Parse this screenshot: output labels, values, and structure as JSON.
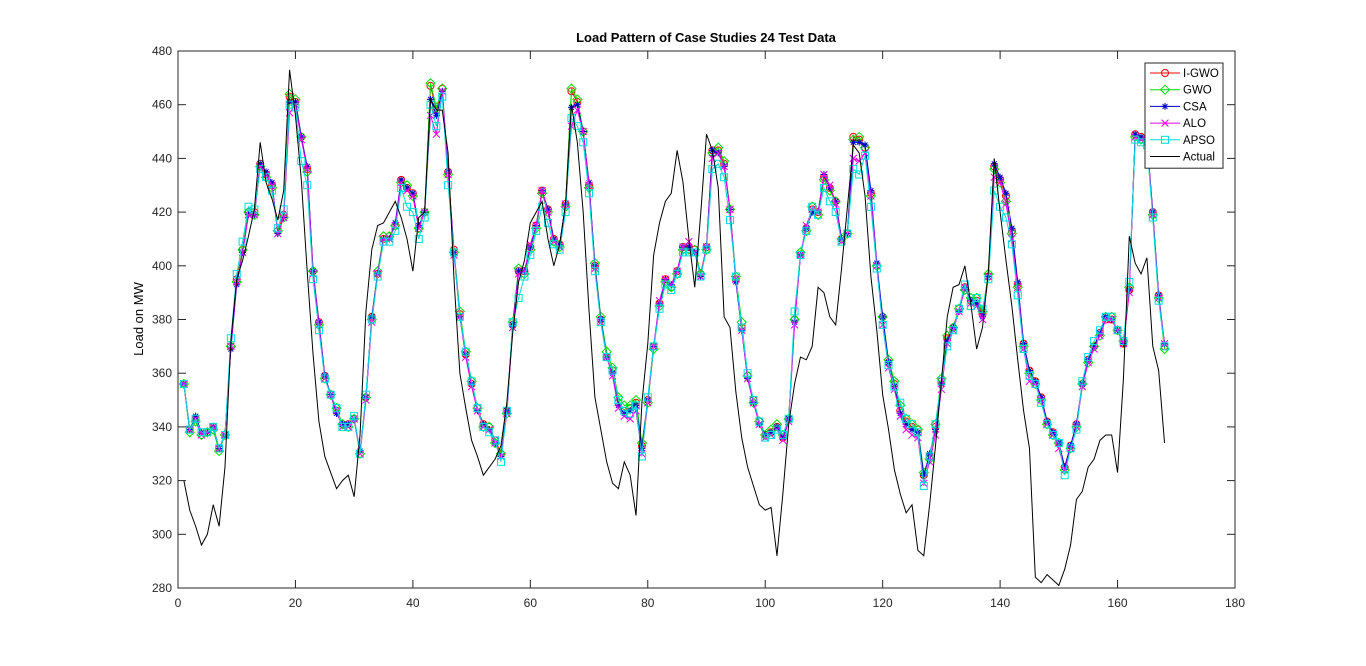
{
  "chart_data": {
    "type": "line",
    "title": "Load Pattern of Case Studies 24 Test Data",
    "xlabel": "",
    "ylabel": "Load on MW",
    "xlim": [
      0,
      180
    ],
    "ylim": [
      280,
      480
    ],
    "xticks": [
      0,
      20,
      40,
      60,
      80,
      100,
      120,
      140,
      160,
      180
    ],
    "yticks": [
      280,
      300,
      320,
      340,
      360,
      380,
      400,
      420,
      440,
      460,
      480
    ],
    "grid": false,
    "legend_position": "top-right",
    "x": [
      1,
      2,
      3,
      4,
      5,
      6,
      7,
      8,
      9,
      10,
      11,
      12,
      13,
      14,
      15,
      16,
      17,
      18,
      19,
      20,
      21,
      22,
      23,
      24,
      25,
      26,
      27,
      28,
      29,
      30,
      31,
      32,
      33,
      34,
      35,
      36,
      37,
      38,
      39,
      40,
      41,
      42,
      43,
      44,
      45,
      46,
      47,
      48,
      49,
      50,
      51,
      52,
      53,
      54,
      55,
      56,
      57,
      58,
      59,
      60,
      61,
      62,
      63,
      64,
      65,
      66,
      67,
      68,
      69,
      70,
      71,
      72,
      73,
      74,
      75,
      76,
      77,
      78,
      79,
      80,
      81,
      82,
      83,
      84,
      85,
      86,
      87,
      88,
      89,
      90,
      91,
      92,
      93,
      94,
      95,
      96,
      97,
      98,
      99,
      100,
      101,
      102,
      103,
      104,
      105,
      106,
      107,
      108,
      109,
      110,
      111,
      112,
      113,
      114,
      115,
      116,
      117,
      118,
      119,
      120,
      121,
      122,
      123,
      124,
      125,
      126,
      127,
      128,
      129,
      130,
      131,
      132,
      133,
      134,
      135,
      136,
      137,
      138,
      139,
      140,
      141,
      142,
      143,
      144,
      145,
      146,
      147,
      148,
      149,
      150,
      151,
      152,
      153,
      154,
      155,
      156,
      157,
      158,
      159,
      160,
      161,
      162,
      163,
      164,
      165,
      166,
      167,
      168
    ],
    "series": [
      {
        "name": "I-GWO",
        "color": "#ff0000",
        "marker": "circle",
        "values": [
          356,
          339,
          343,
          337,
          338,
          340,
          332,
          337,
          370,
          395,
          406,
          420,
          420,
          438,
          434,
          430,
          413,
          419,
          463,
          461,
          448,
          436,
          398,
          379,
          359,
          352,
          346,
          341,
          341,
          343,
          330,
          351,
          381,
          397,
          410,
          411,
          415,
          432,
          429,
          427,
          414,
          420,
          467,
          458,
          466,
          435,
          406,
          382,
          367,
          356,
          347,
          341,
          340,
          335,
          330,
          346,
          378,
          398,
          398,
          407,
          415,
          428,
          421,
          410,
          408,
          423,
          465,
          461,
          450,
          430,
          400,
          380,
          366,
          361,
          349,
          346,
          347,
          349,
          333,
          350,
          370,
          386,
          395,
          392,
          398,
          407,
          407,
          406,
          397,
          407,
          443,
          443,
          438,
          421,
          395,
          377,
          359,
          350,
          342,
          337,
          338,
          340,
          336,
          343,
          380,
          404,
          414,
          421,
          420,
          433,
          429,
          424,
          410,
          412,
          448,
          447,
          444,
          427,
          400,
          381,
          364,
          356,
          346,
          342,
          340,
          339,
          322,
          329,
          340,
          357,
          373,
          377,
          384,
          392,
          387,
          387,
          382,
          396,
          437,
          432,
          426,
          413,
          393,
          371,
          361,
          357,
          351,
          342,
          338,
          334,
          325,
          333,
          341,
          356,
          365,
          370,
          375,
          380,
          380,
          376,
          371,
          391,
          449,
          448,
          447,
          420,
          389,
          370
        ]
      },
      {
        "name": "GWO",
        "color": "#00dd00",
        "marker": "diamond",
        "values": [
          356,
          338,
          342,
          337,
          338,
          339,
          331,
          337,
          370,
          394,
          406,
          420,
          419,
          437,
          433,
          429,
          413,
          418,
          464,
          462,
          448,
          435,
          398,
          378,
          358,
          352,
          347,
          341,
          340,
          343,
          330,
          351,
          380,
          398,
          411,
          411,
          415,
          431,
          430,
          426,
          414,
          420,
          468,
          459,
          466,
          434,
          405,
          383,
          368,
          357,
          347,
          340,
          340,
          334,
          330,
          345,
          379,
          399,
          397,
          406,
          414,
          427,
          420,
          409,
          407,
          422,
          466,
          462,
          450,
          429,
          401,
          381,
          368,
          362,
          351,
          348,
          348,
          350,
          334,
          349,
          369,
          385,
          394,
          392,
          397,
          406,
          406,
          406,
          397,
          406,
          442,
          444,
          439,
          421,
          396,
          379,
          359,
          349,
          342,
          337,
          339,
          341,
          337,
          343,
          380,
          405,
          413,
          422,
          419,
          432,
          428,
          424,
          410,
          412,
          447,
          448,
          444,
          426,
          400,
          381,
          365,
          357,
          348,
          343,
          341,
          339,
          323,
          328,
          341,
          358,
          374,
          377,
          384,
          391,
          388,
          388,
          383,
          397,
          436,
          431,
          424,
          412,
          392,
          370,
          360,
          356,
          350,
          341,
          337,
          334,
          324,
          332,
          340,
          356,
          364,
          370,
          374,
          381,
          381,
          376,
          372,
          392,
          448,
          447,
          446,
          419,
          388,
          369
        ]
      },
      {
        "name": "CSA",
        "color": "#0000cc",
        "marker": "asterisk",
        "values": [
          356,
          339,
          344,
          338,
          338,
          340,
          332,
          337,
          369,
          393,
          405,
          419,
          419,
          438,
          435,
          431,
          412,
          418,
          461,
          461,
          448,
          437,
          398,
          379,
          359,
          352,
          345,
          341,
          341,
          343,
          331,
          351,
          381,
          397,
          410,
          410,
          416,
          432,
          429,
          427,
          415,
          420,
          462,
          456,
          465,
          435,
          405,
          381,
          367,
          356,
          346,
          341,
          339,
          334,
          329,
          346,
          378,
          398,
          398,
          407,
          415,
          428,
          421,
          410,
          408,
          423,
          459,
          460,
          450,
          431,
          400,
          380,
          366,
          360,
          348,
          345,
          346,
          348,
          332,
          350,
          370,
          386,
          395,
          393,
          398,
          407,
          407,
          405,
          396,
          407,
          443,
          442,
          437,
          421,
          394,
          376,
          358,
          349,
          341,
          337,
          338,
          340,
          336,
          343,
          379,
          404,
          414,
          420,
          420,
          434,
          429,
          424,
          410,
          412,
          446,
          446,
          445,
          428,
          401,
          381,
          364,
          355,
          345,
          341,
          339,
          338,
          322,
          330,
          339,
          356,
          372,
          377,
          383,
          392,
          387,
          386,
          381,
          396,
          438,
          433,
          427,
          414,
          394,
          371,
          361,
          357,
          351,
          342,
          338,
          334,
          325,
          333,
          341,
          356,
          365,
          370,
          375,
          381,
          380,
          376,
          371,
          391,
          449,
          448,
          447,
          420,
          389,
          371
        ]
      },
      {
        "name": "ALO",
        "color": "#ee00ee",
        "marker": "x",
        "values": [
          356,
          339,
          343,
          337,
          338,
          340,
          332,
          337,
          370,
          394,
          405,
          419,
          419,
          437,
          434,
          430,
          412,
          418,
          457,
          460,
          447,
          436,
          397,
          378,
          358,
          352,
          346,
          340,
          340,
          343,
          330,
          350,
          379,
          397,
          410,
          410,
          415,
          431,
          428,
          426,
          414,
          420,
          456,
          449,
          465,
          434,
          404,
          381,
          366,
          355,
          346,
          340,
          339,
          334,
          329,
          345,
          377,
          397,
          398,
          408,
          415,
          428,
          420,
          409,
          407,
          423,
          452,
          458,
          450,
          430,
          399,
          379,
          366,
          359,
          347,
          344,
          343,
          346,
          330,
          349,
          370,
          387,
          395,
          393,
          398,
          407,
          409,
          405,
          396,
          407,
          440,
          442,
          437,
          421,
          395,
          376,
          358,
          349,
          341,
          336,
          337,
          339,
          335,
          342,
          378,
          404,
          415,
          421,
          420,
          434,
          430,
          423,
          409,
          412,
          440,
          439,
          442,
          426,
          400,
          378,
          362,
          354,
          344,
          339,
          337,
          336,
          319,
          327,
          337,
          354,
          371,
          376,
          383,
          392,
          386,
          385,
          380,
          396,
          433,
          431,
          423,
          410,
          392,
          369,
          357,
          356,
          350,
          341,
          337,
          332,
          324,
          332,
          340,
          355,
          364,
          369,
          374,
          380,
          380,
          376,
          371,
          390,
          448,
          447,
          447,
          419,
          388,
          371
        ]
      },
      {
        "name": "APSO",
        "color": "#00dddd",
        "marker": "square",
        "values": [
          356,
          339,
          343,
          338,
          338,
          340,
          332,
          337,
          373,
          397,
          409,
          422,
          421,
          436,
          433,
          428,
          414,
          421,
          460,
          459,
          439,
          430,
          395,
          376,
          358,
          352,
          347,
          340,
          340,
          344,
          330,
          352,
          380,
          396,
          409,
          409,
          413,
          429,
          422,
          420,
          410,
          418,
          460,
          452,
          463,
          430,
          405,
          381,
          368,
          357,
          347,
          340,
          338,
          335,
          327,
          346,
          379,
          388,
          396,
          404,
          413,
          422,
          416,
          408,
          406,
          420,
          455,
          452,
          446,
          427,
          398,
          379,
          366,
          361,
          350,
          346,
          345,
          348,
          329,
          351,
          370,
          384,
          393,
          391,
          397,
          405,
          405,
          405,
          396,
          406,
          436,
          438,
          433,
          417,
          396,
          377,
          360,
          350,
          342,
          336,
          337,
          339,
          337,
          343,
          383,
          404,
          413,
          422,
          419,
          429,
          424,
          420,
          409,
          412,
          436,
          434,
          441,
          422,
          399,
          378,
          363,
          355,
          349,
          343,
          341,
          338,
          318,
          329,
          341,
          357,
          370,
          376,
          384,
          393,
          385,
          388,
          384,
          395,
          428,
          422,
          418,
          408,
          389,
          369,
          359,
          356,
          349,
          341,
          337,
          334,
          322,
          332,
          339,
          357,
          366,
          372,
          376,
          381,
          381,
          376,
          372,
          394,
          447,
          446,
          445,
          418,
          387,
          370
        ]
      },
      {
        "name": "Actual",
        "color": "#000000",
        "marker": "none",
        "values": [
          320,
          309,
          303,
          296,
          300,
          311,
          303,
          325,
          372,
          395,
          402,
          411,
          421,
          446,
          431,
          425,
          417,
          428,
          473,
          456,
          432,
          398,
          367,
          342,
          329,
          323,
          317,
          320,
          322,
          314,
          337,
          383,
          406,
          415,
          416,
          420,
          424,
          418,
          410,
          398,
          418,
          420,
          462,
          458,
          458,
          442,
          395,
          360,
          347,
          335,
          329,
          322,
          325,
          328,
          333,
          349,
          375,
          394,
          402,
          416,
          420,
          424,
          410,
          400,
          408,
          423,
          460,
          446,
          420,
          383,
          351,
          339,
          327,
          319,
          317,
          327,
          322,
          307,
          349,
          371,
          404,
          416,
          424,
          427,
          443,
          431,
          410,
          392,
          419,
          449,
          443,
          429,
          381,
          377,
          353,
          336,
          325,
          318,
          311,
          309,
          310,
          292,
          315,
          341,
          356,
          366,
          365,
          370,
          392,
          390,
          381,
          378,
          399,
          422,
          445,
          442,
          426,
          396,
          376,
          352,
          339,
          324,
          315,
          308,
          311,
          294,
          292,
          311,
          333,
          357,
          381,
          392,
          393,
          400,
          386,
          369,
          377,
          398,
          440,
          420,
          402,
          385,
          365,
          346,
          332,
          284,
          282,
          285,
          283,
          281,
          287,
          296,
          313,
          316,
          325,
          328,
          335,
          337,
          337,
          323,
          358,
          411,
          401,
          397,
          403,
          370,
          361,
          334
        ]
      }
    ]
  }
}
